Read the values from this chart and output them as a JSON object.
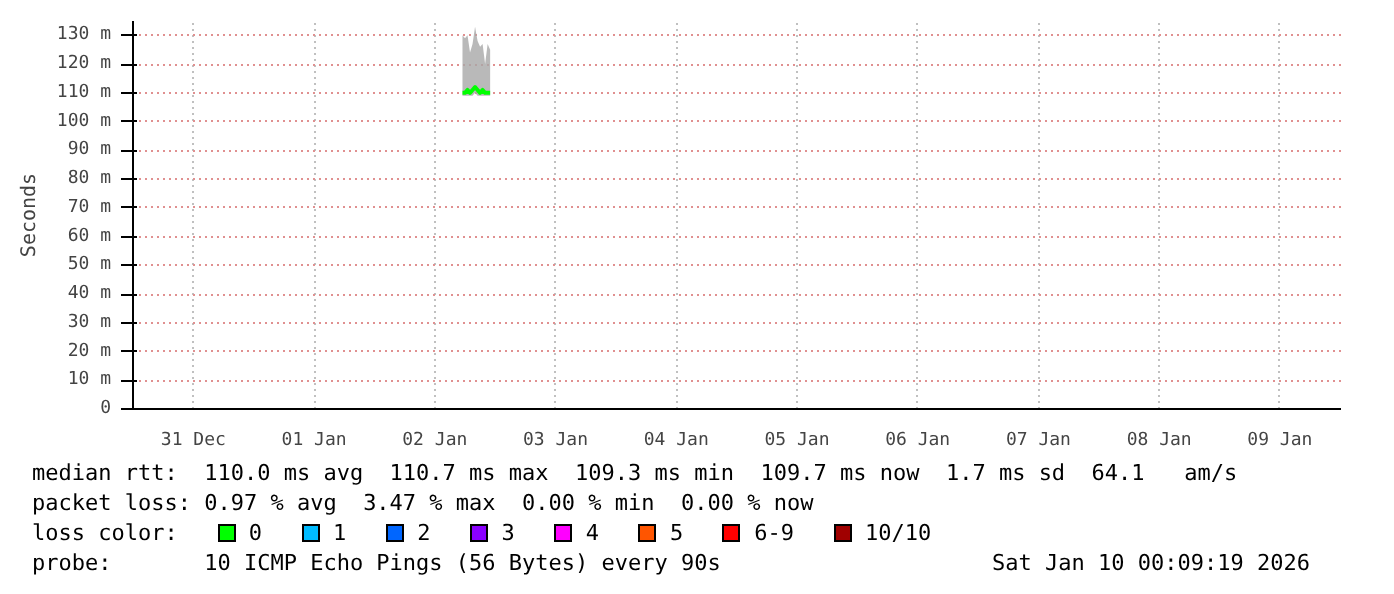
{
  "chart_data": {
    "type": "line",
    "ylabel": "Seconds",
    "xlim": [
      "2025-12-31T00:00",
      "2026-01-10T00:09"
    ],
    "xticks": [
      {
        "value": "2025-12-31T12:00",
        "label": "31 Dec"
      },
      {
        "value": "2026-01-01T12:00",
        "label": "01 Jan"
      },
      {
        "value": "2026-01-02T12:00",
        "label": "02 Jan"
      },
      {
        "value": "2026-01-03T12:00",
        "label": "03 Jan"
      },
      {
        "value": "2026-01-04T12:00",
        "label": "04 Jan"
      },
      {
        "value": "2026-01-05T12:00",
        "label": "05 Jan"
      },
      {
        "value": "2026-01-06T12:00",
        "label": "06 Jan"
      },
      {
        "value": "2026-01-07T12:00",
        "label": "07 Jan"
      },
      {
        "value": "2026-01-08T12:00",
        "label": "08 Jan"
      },
      {
        "value": "2026-01-09T12:00",
        "label": "09 Jan"
      }
    ],
    "ylim": [
      0,
      135
    ],
    "yticks": [
      0,
      {
        "value": 10,
        "label": "10 m"
      },
      {
        "value": 20,
        "label": "20 m"
      },
      {
        "value": 30,
        "label": "30 m"
      },
      {
        "value": 40,
        "label": "40 m"
      },
      {
        "value": 50,
        "label": "50 m"
      },
      {
        "value": 60,
        "label": "60 m"
      },
      {
        "value": 70,
        "label": "70 m"
      },
      {
        "value": 80,
        "label": "80 m"
      },
      {
        "value": 90,
        "label": "90 m"
      },
      {
        "value": 100,
        "label": "100 m"
      },
      {
        "value": 110,
        "label": "110 m"
      },
      {
        "value": 120,
        "label": "120 m"
      },
      {
        "value": 130,
        "label": "130 m"
      }
    ],
    "grid": true,
    "legend": "bottom",
    "legend_title": "loss color:",
    "series": [
      {
        "name": "0",
        "color": "#00ff00",
        "x": [
          "2026-01-02T17:30",
          "2026-01-02T18:00",
          "2026-01-02T18:30",
          "2026-01-02T19:00",
          "2026-01-02T19:30",
          "2026-01-02T20:00",
          "2026-01-02T20:30",
          "2026-01-02T21:00",
          "2026-01-02T21:30",
          "2026-01-02T22:00",
          "2026-01-02T22:30",
          "2026-01-02T23:00"
        ],
        "values": [
          110,
          110,
          111,
          110,
          111,
          112,
          111,
          110,
          111,
          110,
          110,
          110
        ],
        "lower": [
          109,
          109,
          109,
          109,
          109,
          110,
          109,
          109,
          109,
          109,
          109,
          109
        ],
        "upper": [
          130,
          129,
          130,
          124,
          127,
          133,
          128,
          126,
          127,
          120,
          127,
          125
        ]
      },
      {
        "name": "1",
        "color": "#00bbff"
      },
      {
        "name": "2",
        "color": "#0066ff"
      },
      {
        "name": "3",
        "color": "#8a00ff"
      },
      {
        "name": "4",
        "color": "#ff00ff"
      },
      {
        "name": "5",
        "color": "#ff5500"
      },
      {
        "name": "6-9",
        "color": "#ff0000"
      },
      {
        "name": "10/10",
        "color": "#a00000"
      }
    ],
    "annotations": [
      "median rtt:  110.0 ms avg  110.7 ms max  109.3 ms min  109.7 ms now  1.7 ms sd  64.1   am/s",
      "packet loss: 0.97 % avg  3.47 % max  0.00 % min  0.00 % now",
      "probe:       10 ICMP Echo Pings (56 Bytes) every 90s",
      "Sat Jan 10 00:09:19 2026"
    ]
  }
}
